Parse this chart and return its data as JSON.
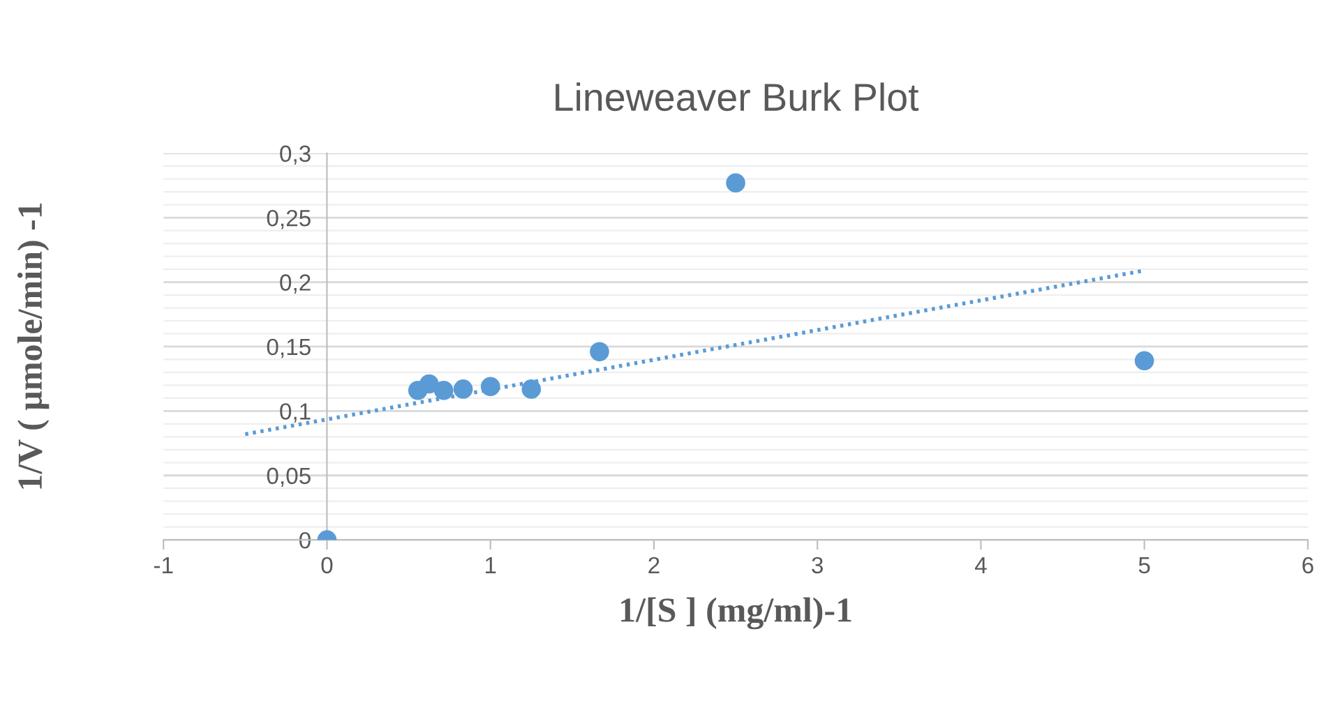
{
  "chart_data": {
    "type": "scatter",
    "title": "Lineweaver Burk Plot",
    "xlabel": "1/[S ] (mg/ml)-1",
    "ylabel": "1/V ( µmole/min) -1",
    "xlim": [
      -1,
      6
    ],
    "xticks": [
      -1,
      0,
      1,
      2,
      3,
      4,
      5,
      6
    ],
    "ylim": [
      0,
      0.3
    ],
    "yticks": [
      0,
      {
        "value": 0.05,
        "label": "0,05"
      },
      {
        "value": 0.1,
        "label": "0,1"
      },
      {
        "value": 0.15,
        "label": "0,15"
      },
      {
        "value": 0.2,
        "label": "0,2"
      },
      {
        "value": 0.25,
        "label": "0,25"
      },
      {
        "value": 0.3,
        "label": "0,3"
      }
    ],
    "grid": "y",
    "marker": "circle",
    "series": [
      {
        "color": "#5b9bd5",
        "x": [
          0,
          0.556,
          0.625,
          0.714,
          0.833,
          1.0,
          1.25,
          1.667,
          2.5,
          5.0
        ],
        "values": [
          0,
          0.116,
          0.121,
          0.116,
          0.117,
          0.119,
          0.117,
          0.146,
          0.277,
          0.139
        ]
      },
      {
        "type": "line",
        "color": "#5b9bd5",
        "line_style": "dotted",
        "marker": "none",
        "x": [
          -0.5,
          5.0
        ],
        "values": [
          0.082,
          0.209
        ]
      }
    ]
  }
}
